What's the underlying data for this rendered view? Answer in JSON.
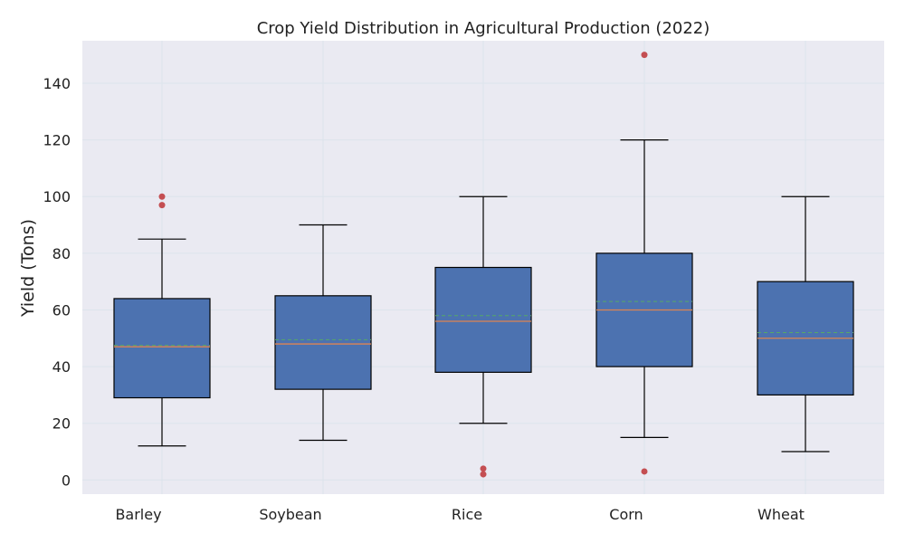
{
  "chart_data": {
    "type": "box",
    "title": "Crop Yield Distribution in Agricultural Production (2022)",
    "xlabel": "",
    "ylabel": "Yield (Tons)",
    "ylim": [
      -5,
      155
    ],
    "yticks": [
      0,
      20,
      40,
      60,
      80,
      100,
      120,
      140
    ],
    "grid": true,
    "categories": [
      "Barley",
      "Soybean",
      "Rice",
      "Corn",
      "Wheat"
    ],
    "boxes": [
      {
        "name": "Barley",
        "whisker_low": 12,
        "q1": 29,
        "median": 47,
        "mean": 47.5,
        "q3": 64,
        "whisker_high": 85,
        "outliers": [
          97,
          100
        ]
      },
      {
        "name": "Soybean",
        "whisker_low": 14,
        "q1": 32,
        "median": 48,
        "mean": 49.5,
        "q3": 65,
        "whisker_high": 90,
        "outliers": []
      },
      {
        "name": "Rice",
        "whisker_low": 20,
        "q1": 38,
        "median": 56,
        "mean": 58,
        "q3": 75,
        "whisker_high": 100,
        "outliers": [
          2,
          4
        ]
      },
      {
        "name": "Corn",
        "whisker_low": 15,
        "q1": 40,
        "median": 60,
        "mean": 63,
        "q3": 80,
        "whisker_high": 120,
        "outliers": [
          3,
          150
        ]
      },
      {
        "name": "Wheat",
        "whisker_low": 10,
        "q1": 30,
        "median": 50,
        "mean": 52,
        "q3": 70,
        "whisker_high": 100,
        "outliers": []
      }
    ],
    "colors": {
      "plot_bg": "#eaeaf2",
      "box_fill": "#4c72b0",
      "box_edge": "#000000",
      "median": "#dd8452",
      "mean": "#55a868",
      "outlier": "#c44e52",
      "grid": "#dce4ec"
    }
  }
}
